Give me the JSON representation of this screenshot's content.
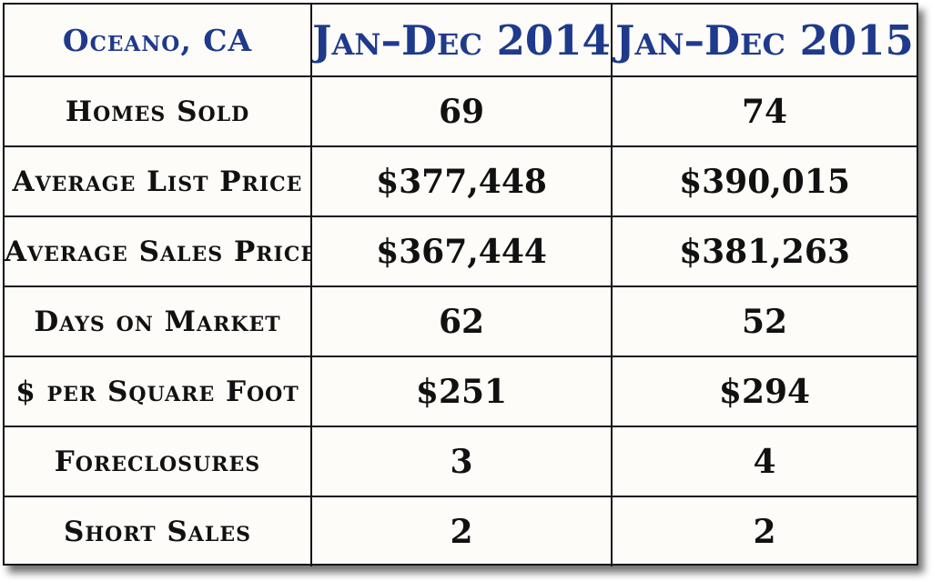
{
  "table": {
    "location": "Oceano, CA",
    "periods": [
      "Jan–Dec 2014",
      "Jan–Dec 2015"
    ],
    "rows": [
      {
        "label": "Homes Sold",
        "v2014": "69",
        "v2015": "74"
      },
      {
        "label": "Average List Price",
        "v2014": "$377,448",
        "v2015": "$390,015"
      },
      {
        "label": "Average Sales Price",
        "v2014": "$367,444",
        "v2015": "$381,263"
      },
      {
        "label": "Days on Market",
        "v2014": "62",
        "v2015": "52"
      },
      {
        "label": "$ per Square Foot",
        "v2014": "$251",
        "v2015": "$294"
      },
      {
        "label": "Foreclosures",
        "v2014": "3",
        "v2015": "4"
      },
      {
        "label": "Short Sales",
        "v2014": "2",
        "v2015": "2"
      }
    ]
  },
  "colors": {
    "header_text": "#1f3a8c",
    "body_text": "#111111",
    "grid_line": "#151515",
    "background": "#fdfcf9"
  }
}
